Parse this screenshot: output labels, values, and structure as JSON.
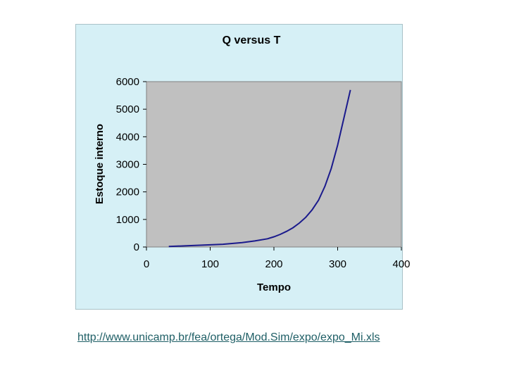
{
  "chart_data": {
    "type": "line",
    "title": "Q versus T",
    "xlabel": "Tempo",
    "ylabel": "Estoque interno",
    "xlim": [
      0,
      400
    ],
    "ylim": [
      0,
      6000
    ],
    "xticks": [
      "0",
      "100",
      "200",
      "300",
      "400"
    ],
    "yticks": [
      "0",
      "1000",
      "2000",
      "3000",
      "4000",
      "5000",
      "6000"
    ],
    "grid": false,
    "legend": "none",
    "series": [
      {
        "x": [
          35,
          60,
          90,
          120,
          150,
          170,
          190,
          200,
          210,
          220,
          230,
          240,
          250,
          260,
          270,
          280,
          290,
          300,
          310,
          320
        ],
        "y": [
          20,
          40,
          70,
          100,
          160,
          220,
          300,
          370,
          460,
          570,
          700,
          870,
          1080,
          1350,
          1700,
          2200,
          2850,
          3700,
          4700,
          5700
        ],
        "color": "#1a1a8c"
      }
    ],
    "plot_background": "#c0c0c0",
    "panel_background": "#d6f0f6"
  },
  "source": {
    "url_text": "http://www.unicamp.br/fea/ortega/Mod.Sim/expo/expo_Mi.xls",
    "color": "#1f5f66"
  }
}
